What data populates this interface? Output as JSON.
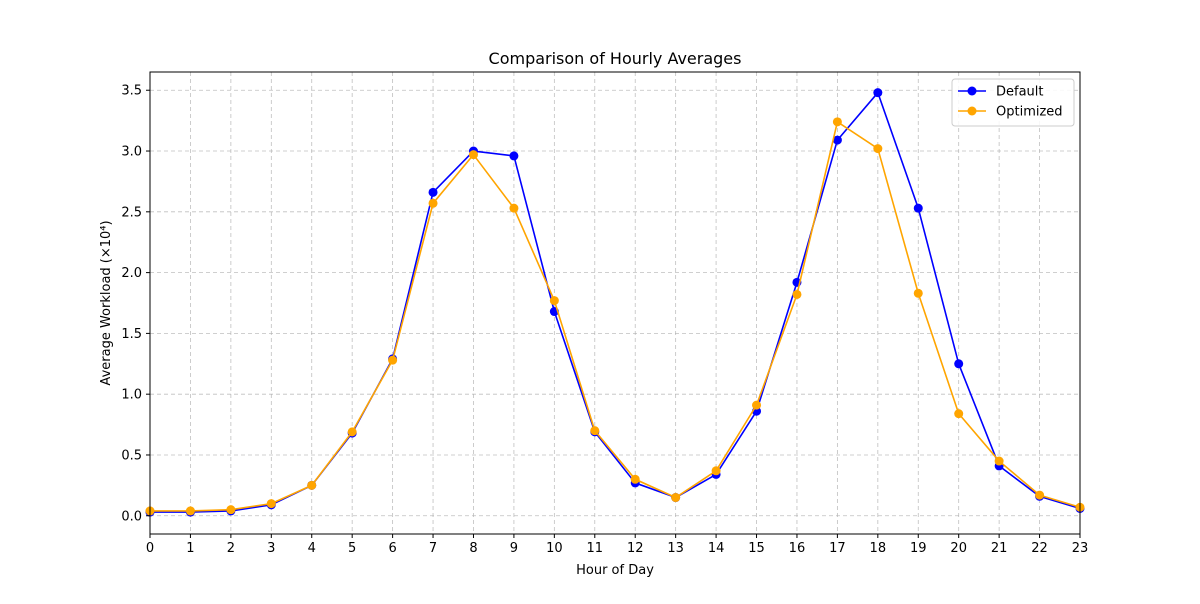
{
  "chart_data": {
    "type": "line",
    "title": "Comparison of Hourly Averages",
    "xlabel": "Hour of Day",
    "ylabel": "Average Workload (×10⁴)",
    "x": [
      0,
      1,
      2,
      3,
      4,
      5,
      6,
      7,
      8,
      9,
      10,
      11,
      12,
      13,
      14,
      15,
      16,
      17,
      18,
      19,
      20,
      21,
      22,
      23
    ],
    "x_ticks": [
      "0",
      "1",
      "2",
      "3",
      "4",
      "5",
      "6",
      "7",
      "8",
      "9",
      "10",
      "11",
      "12",
      "13",
      "14",
      "15",
      "16",
      "17",
      "18",
      "19",
      "20",
      "21",
      "22",
      "23"
    ],
    "y_ticks": [
      "0.0",
      "0.5",
      "1.0",
      "1.5",
      "2.0",
      "2.5",
      "3.0",
      "3.5"
    ],
    "xlim": [
      0,
      23
    ],
    "ylim": [
      -0.15,
      3.65
    ],
    "grid": true,
    "legend_position": "top-right",
    "series": [
      {
        "name": "Default",
        "color": "#0000ff",
        "values": [
          0.03,
          0.03,
          0.04,
          0.09,
          0.25,
          0.68,
          1.29,
          2.66,
          3.0,
          2.96,
          1.68,
          0.69,
          0.27,
          0.15,
          0.34,
          0.86,
          1.92,
          3.09,
          3.48,
          2.53,
          1.25,
          0.41,
          0.16,
          0.06
        ]
      },
      {
        "name": "Optimized",
        "color": "#ffa500",
        "values": [
          0.04,
          0.04,
          0.05,
          0.1,
          0.25,
          0.69,
          1.28,
          2.57,
          2.97,
          2.53,
          1.77,
          0.7,
          0.3,
          0.15,
          0.37,
          0.91,
          1.82,
          3.24,
          3.02,
          1.83,
          0.84,
          0.45,
          0.17,
          0.07
        ]
      }
    ]
  }
}
